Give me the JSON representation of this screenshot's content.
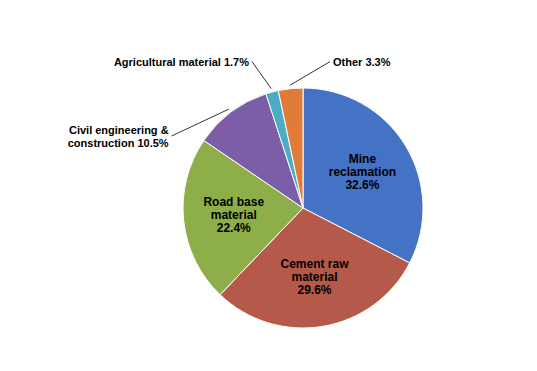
{
  "chart_data": {
    "type": "pie",
    "categories": [
      "Mine\nreclamation\n32.6%",
      "Cement raw\nmaterial\n29.6%",
      "Road base\nmaterial\n22.4%",
      "Civil engineering &\nconstruction 10.5%",
      "Agricultural material 1.7%",
      "Other 3.3%"
    ],
    "values": [
      32.6,
      29.6,
      22.4,
      10.5,
      1.7,
      3.3
    ],
    "colors": [
      "#4472C4",
      "#B55A4A",
      "#8DAE48",
      "#7B5EA7",
      "#4BACC6",
      "#E07B39"
    ]
  }
}
